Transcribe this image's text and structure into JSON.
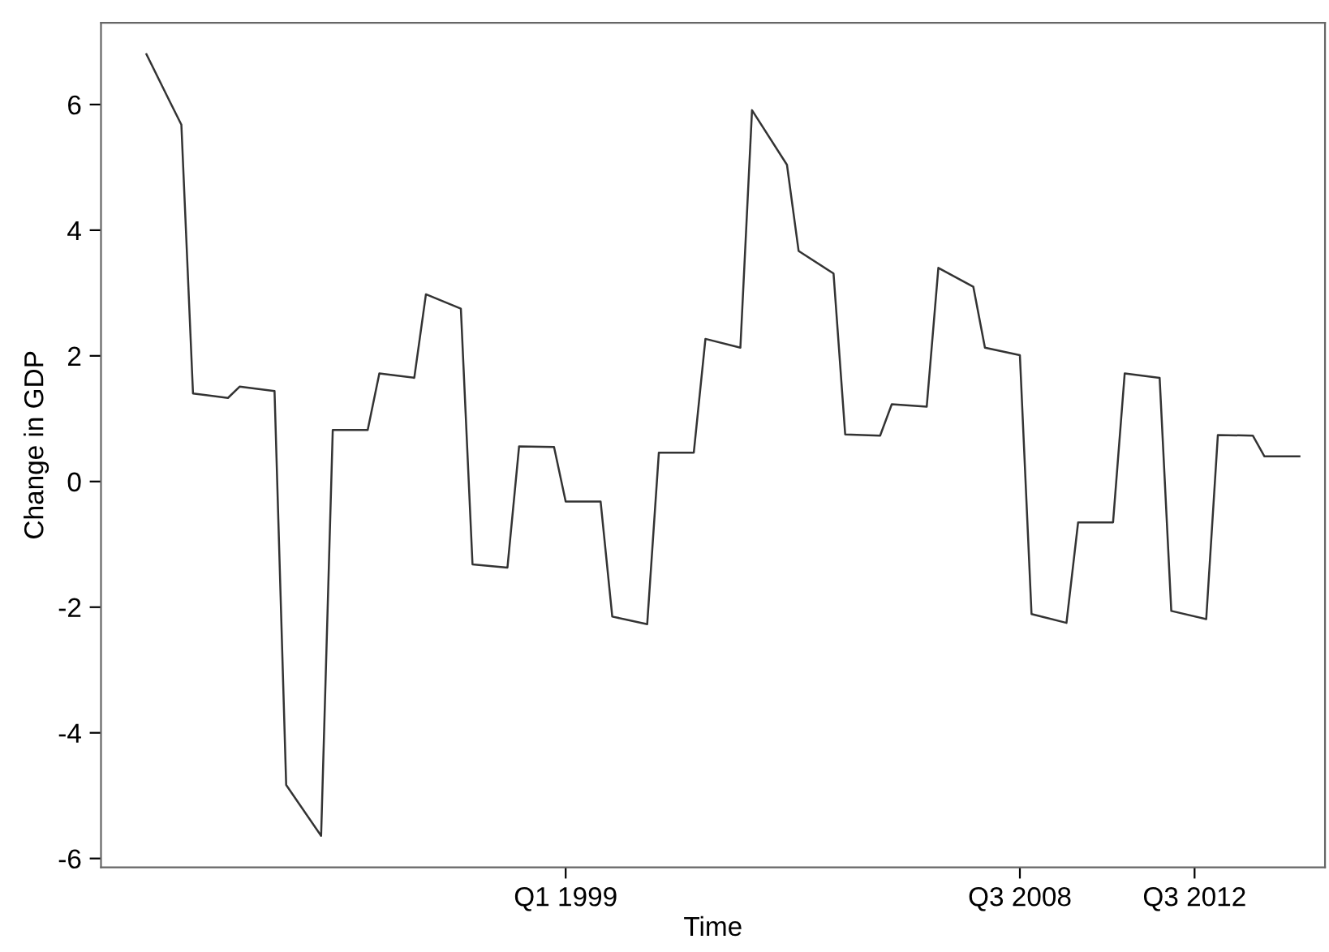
{
  "chart_data": {
    "type": "line",
    "xlabel": "Time",
    "ylabel": "Change in GDP",
    "categories": [
      null,
      null,
      null,
      null,
      null,
      null,
      null,
      null,
      null,
      null,
      null,
      null,
      null,
      null,
      null,
      null,
      null,
      null,
      null,
      null,
      null,
      null,
      null,
      null,
      null,
      null,
      null,
      null,
      null,
      null,
      null,
      null,
      null,
      null,
      null,
      null,
      "Q1 1999",
      null,
      null,
      null,
      null,
      null,
      null,
      null,
      null,
      null,
      null,
      null,
      null,
      null,
      null,
      null,
      null,
      null,
      null,
      null,
      null,
      null,
      null,
      null,
      null,
      null,
      null,
      null,
      null,
      null,
      null,
      null,
      null,
      null,
      null,
      null,
      null,
      null,
      null,
      "Q3 2008",
      null,
      null,
      null,
      null,
      null,
      null,
      null,
      null,
      null,
      null,
      null,
      null,
      null,
      null,
      "Q3 2012",
      null,
      null,
      null,
      null,
      null,
      null,
      null,
      null,
      null
    ],
    "series": [
      {
        "color": "#333333",
        "values": [
          6.8,
          null,
          6.05,
          5.68,
          1.4,
          null,
          null,
          1.33,
          1.51,
          null,
          null,
          1.44,
          -4.83,
          null,
          null,
          -5.64,
          0.82,
          null,
          null,
          0.82,
          1.72,
          null,
          null,
          1.65,
          2.98,
          null,
          null,
          2.75,
          -1.32,
          null,
          null,
          -1.37,
          0.56,
          null,
          null,
          0.55,
          -0.32,
          null,
          null,
          -0.32,
          -2.15,
          null,
          null,
          -2.27,
          0.46,
          null,
          null,
          0.46,
          2.27,
          null,
          null,
          2.13,
          5.91,
          null,
          null,
          5.04,
          3.67,
          null,
          null,
          3.31,
          0.75,
          null,
          null,
          0.73,
          1.23,
          null,
          null,
          1.19,
          3.4,
          null,
          null,
          3.1,
          2.13,
          null,
          null,
          2.01,
          -2.11,
          null,
          null,
          -2.25,
          -0.65,
          null,
          null,
          -0.65,
          1.72,
          null,
          null,
          1.65,
          -2.06,
          null,
          null,
          -2.19,
          0.74,
          null,
          null,
          0.73,
          0.4,
          null,
          null,
          0.4
        ]
      }
    ],
    "ylim": [
      -6.14,
      7.3
    ],
    "yticks": [
      -6,
      -4,
      -2,
      0,
      2,
      4,
      6
    ],
    "grid": false,
    "legend": false,
    "marker": "none",
    "line_style": "solid"
  }
}
